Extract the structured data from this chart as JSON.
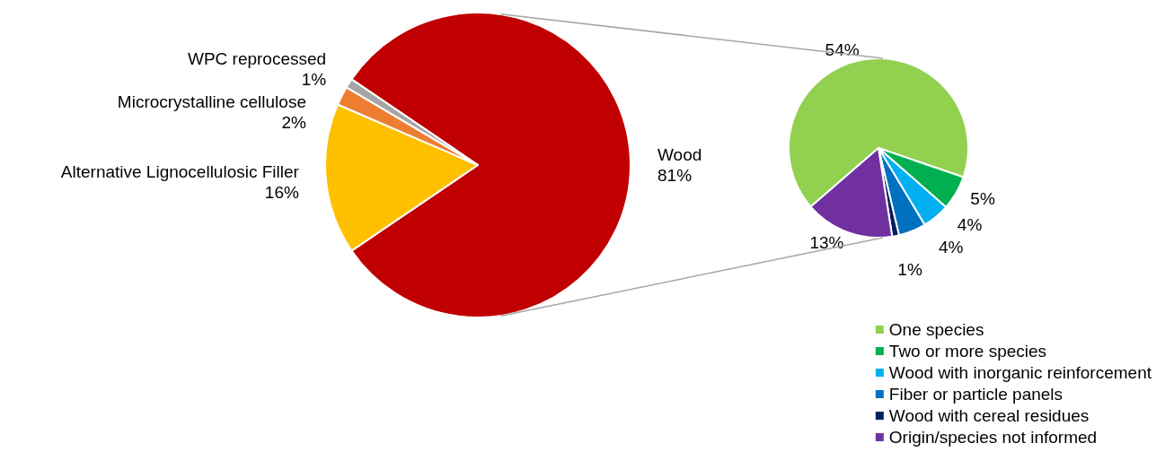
{
  "chart_data": [
    {
      "type": "pie",
      "categories": [
        "Wood",
        "Alternative Lignocellulosic Filler",
        "Microcrystalline cellulose",
        "WPC reprocessed"
      ],
      "values": [
        81,
        16,
        2,
        1
      ],
      "colors": [
        "#c00000",
        "#ffc000",
        "#ed7d31",
        "#a5a5a5"
      ],
      "value_labels": [
        "81%",
        "16%",
        "2%",
        "1%"
      ],
      "legend": false
    },
    {
      "type": "pie",
      "categories": [
        "One species",
        "Two or more species",
        "Wood with inorganic reinforcement",
        "Fiber or particle panels",
        "Wood with cereal residues",
        "Origin/species not informed"
      ],
      "values": [
        54,
        5,
        4,
        4,
        1,
        13
      ],
      "colors": [
        "#92d050",
        "#00b050",
        "#00b0f0",
        "#0070c0",
        "#002060",
        "#7030a0"
      ],
      "value_labels": [
        "54%",
        "5%",
        "4%",
        "4%",
        "1%",
        "13%"
      ],
      "legend": "bottom right"
    }
  ]
}
